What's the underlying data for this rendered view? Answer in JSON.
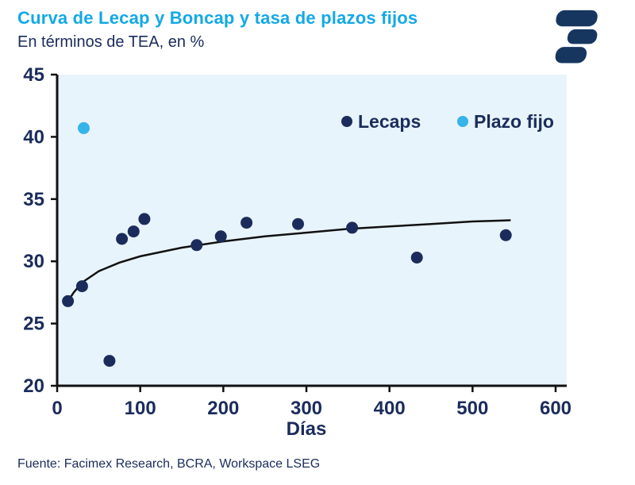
{
  "header": {
    "title": "Curva de Lecap y Boncap y tasa de plazos fijos",
    "subtitle": "En términos de TEA, en %"
  },
  "footer": {
    "source": "Fuente: Facimex Research, BCRA, Workspace LSEG"
  },
  "colors": {
    "title": "#13a9e6",
    "navy": "#1b2c5c",
    "plot_bg": "#e8f4fb",
    "axis": "#111111",
    "trend": "#111111",
    "lecaps": "#1b2c5c",
    "plazo_fijo": "#35b4ea",
    "logo": "#163660"
  },
  "chart_data": {
    "type": "scatter",
    "title": "Curva de Lecap y Boncap y tasa de plazos fijos",
    "subtitle": "En términos de TEA, en %",
    "xlabel": "Días",
    "ylabel": "",
    "xlim": [
      0,
      600
    ],
    "ylim": [
      20,
      45
    ],
    "xticks": [
      0,
      100,
      200,
      300,
      400,
      500,
      600
    ],
    "yticks": [
      20,
      25,
      30,
      35,
      40,
      45
    ],
    "grid": false,
    "legend_position": "top-center-inside",
    "series": [
      {
        "name": "Lecaps",
        "type": "scatter",
        "color": "#1b2c5c",
        "points": [
          [
            13,
            26.8
          ],
          [
            30,
            28.0
          ],
          [
            63,
            22.0
          ],
          [
            78,
            31.8
          ],
          [
            92,
            32.4
          ],
          [
            105,
            33.4
          ],
          [
            168,
            31.3
          ],
          [
            197,
            32.0
          ],
          [
            228,
            33.1
          ],
          [
            290,
            33.0
          ],
          [
            355,
            32.7
          ],
          [
            433,
            30.3
          ],
          [
            540,
            32.1
          ]
        ]
      },
      {
        "name": "Plazo fijo",
        "type": "scatter",
        "color": "#35b4ea",
        "points": [
          [
            32,
            40.7
          ]
        ]
      }
    ],
    "trend": {
      "name": "trend-line",
      "type": "line",
      "color": "#111111",
      "points": [
        [
          13,
          26.8
        ],
        [
          20,
          27.5
        ],
        [
          30,
          28.3
        ],
        [
          50,
          29.2
        ],
        [
          75,
          29.9
        ],
        [
          100,
          30.4
        ],
        [
          150,
          31.1
        ],
        [
          200,
          31.6
        ],
        [
          250,
          32.0
        ],
        [
          300,
          32.3
        ],
        [
          350,
          32.6
        ],
        [
          400,
          32.8
        ],
        [
          450,
          33.0
        ],
        [
          500,
          33.2
        ],
        [
          545,
          33.3
        ]
      ]
    }
  }
}
